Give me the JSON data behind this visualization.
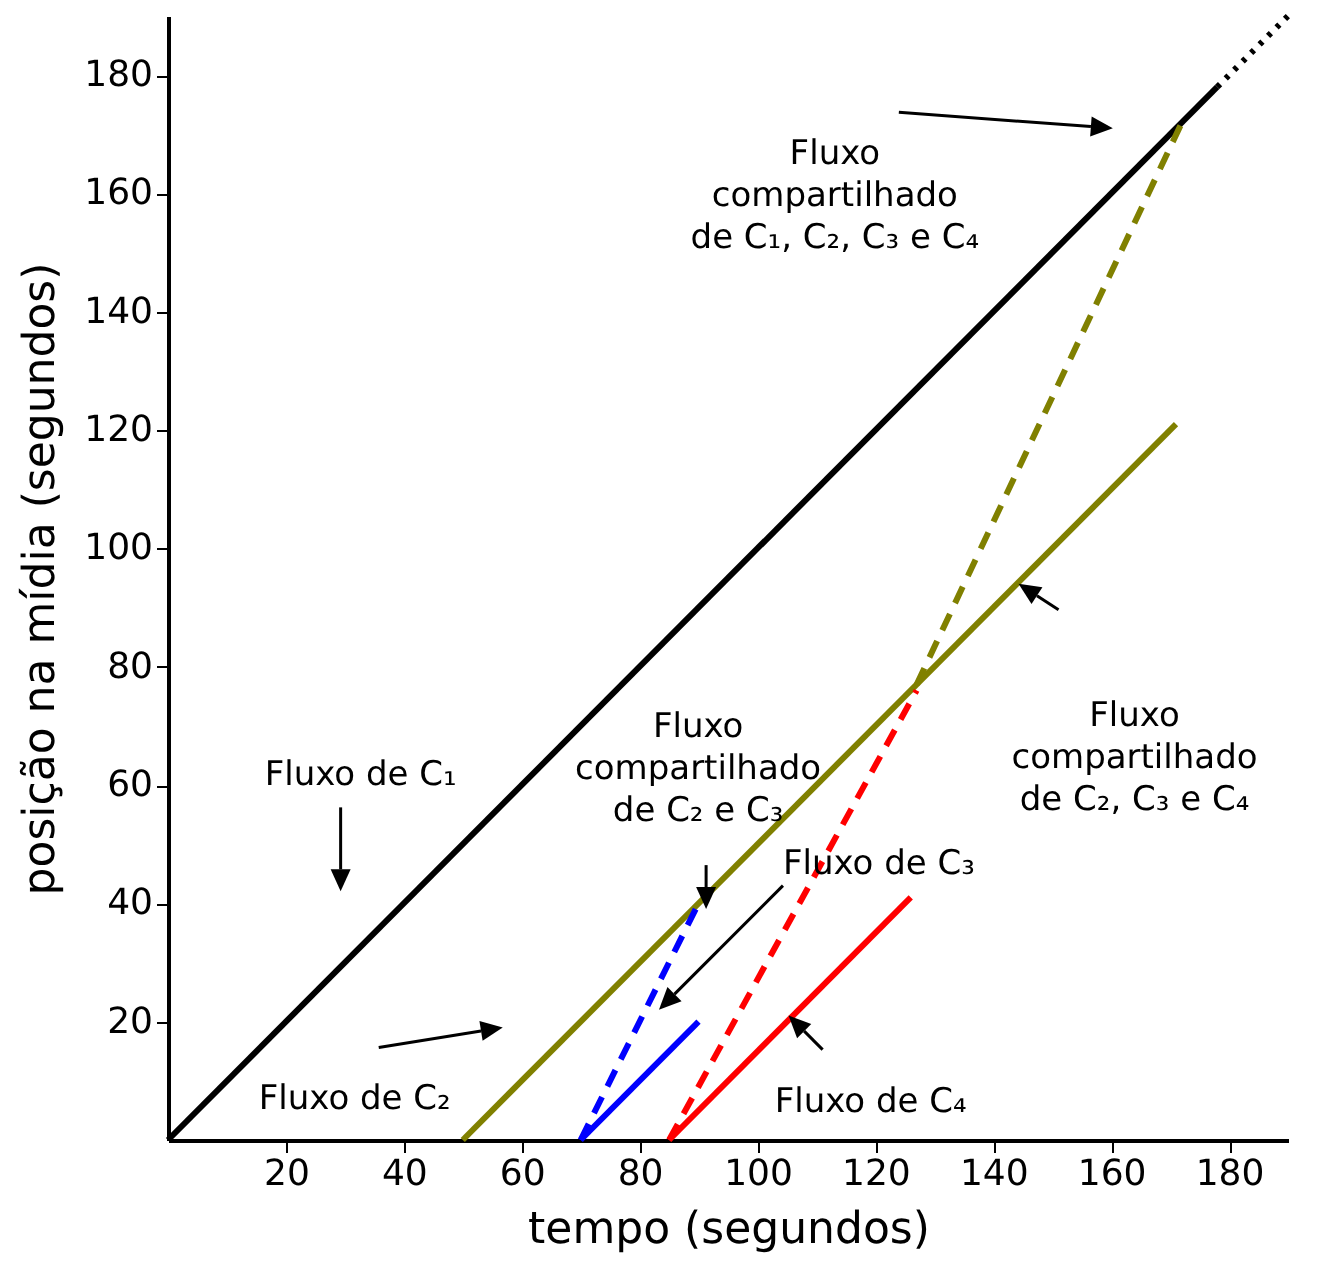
{
  "chart_data": {
    "type": "line",
    "xlabel": "tempo (segundos)",
    "ylabel": "posição na mídia (segundos)",
    "xlim": [
      0,
      190
    ],
    "ylim": [
      0,
      190
    ],
    "xticks": [
      20,
      40,
      60,
      80,
      100,
      120,
      140,
      160,
      180
    ],
    "yticks": [
      20,
      40,
      60,
      80,
      100,
      120,
      140,
      160,
      180
    ],
    "grid": false,
    "marker": "none",
    "series": [
      {
        "color": "#000000",
        "line_style": "solid",
        "x": [
          0,
          178
        ],
        "values": [
          0,
          178
        ]
      },
      {
        "color": "#000000",
        "line_style": "dotted",
        "x": [
          178,
          190
        ],
        "values": [
          178,
          190
        ]
      },
      {
        "color": "#808000",
        "line_style": "solid",
        "x": [
          50,
          171
        ],
        "values": [
          0,
          121
        ]
      },
      {
        "color": "#808000",
        "line_style": "dashed",
        "x": [
          127,
          172
        ],
        "values": [
          77,
          172
        ]
      },
      {
        "color": "#0000ff",
        "line_style": "solid",
        "x": [
          70,
          90
        ],
        "values": [
          0,
          20
        ]
      },
      {
        "color": "#0000ff",
        "line_style": "dashed",
        "x": [
          70,
          90
        ],
        "values": [
          0,
          40
        ]
      },
      {
        "color": "#ff0000",
        "line_style": "solid",
        "x": [
          85,
          126
        ],
        "values": [
          0,
          41
        ]
      },
      {
        "color": "#ff0000",
        "line_style": "dashed",
        "x": [
          85,
          127
        ],
        "values": [
          0,
          76
        ]
      }
    ],
    "annotations": [
      "Fluxo de C₁",
      "Fluxo de C₂",
      "Fluxo\ncompartilhado\nde C₂ e C₃",
      "Fluxo de C₃",
      "Fluxo de C₄",
      "Fluxo\ncompartilhado\nde C₂, C₃ e C₄",
      "Fluxo\ncompartilhado\nde C₁, C₂, C₃ e C₄"
    ]
  }
}
